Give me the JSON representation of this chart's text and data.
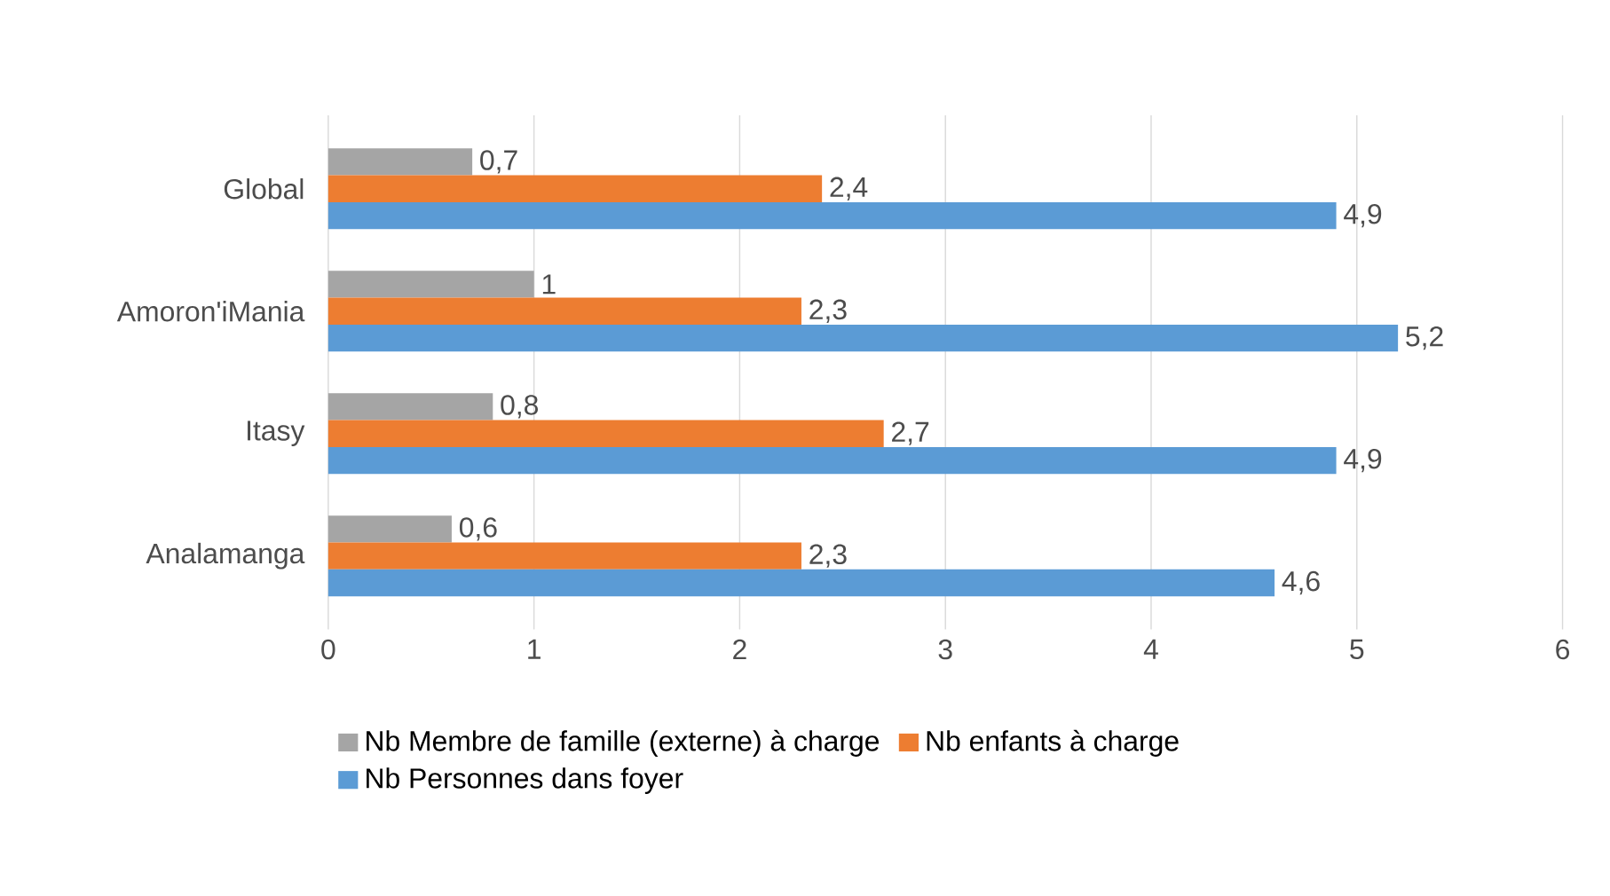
{
  "chart_data": {
    "type": "bar",
    "orientation": "horizontal",
    "categories": [
      "Global",
      "Amoron'iMania",
      "Itasy",
      "Analamanga"
    ],
    "series": [
      {
        "name": "Nb Membre de famille (externe) à charge",
        "color": "#a5a5a5",
        "values": [
          0.7,
          1,
          0.8,
          0.6
        ],
        "value_labels": [
          "0,7",
          "1",
          "0,8",
          "0,6"
        ]
      },
      {
        "name": "Nb enfants à charge",
        "color": "#ed7d31",
        "values": [
          2.4,
          2.3,
          2.7,
          2.3
        ],
        "value_labels": [
          "2,4",
          "2,3",
          "2,7",
          "2,3"
        ]
      },
      {
        "name": "Nb Personnes dans foyer",
        "color": "#5b9bd5",
        "values": [
          4.9,
          5.2,
          4.9,
          4.6
        ],
        "value_labels": [
          "4,9",
          "5,2",
          "4,9",
          "4,6"
        ]
      }
    ],
    "xlim": [
      0,
      6
    ],
    "xticks": [
      0,
      1,
      2,
      3,
      4,
      5,
      6
    ],
    "grid": "x",
    "legend": "bottom"
  }
}
